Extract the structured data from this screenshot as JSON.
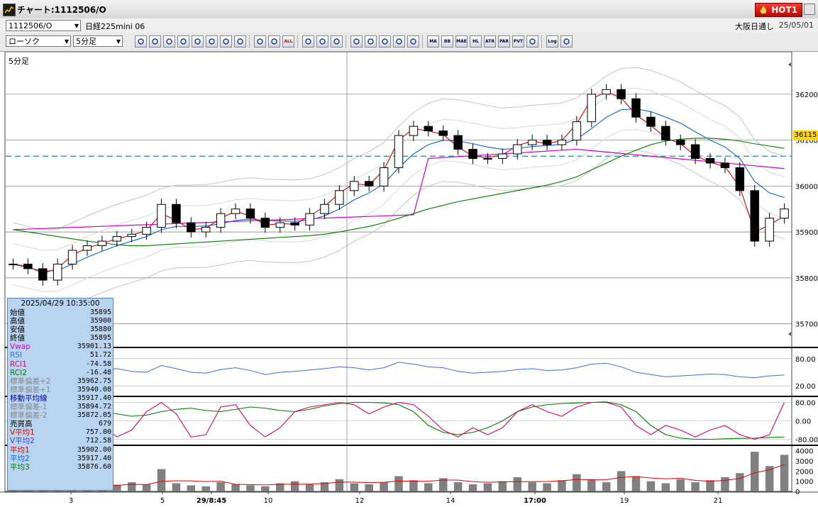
{
  "window": {
    "title": "チャート:1112506/O",
    "hot_label": "HOT1"
  },
  "infobar": {
    "symbol_code": "1112506/O",
    "symbol_name": "日経225mini 06",
    "market": "大阪日通し",
    "date": "25/05/01"
  },
  "toolbar": {
    "chart_type": "ローソク",
    "interval": "5分足",
    "text_buttons": [
      "ALL",
      "MA",
      "BB",
      "MAE",
      "HL",
      "ATR",
      "PAR",
      "PVT",
      "Log"
    ]
  },
  "chart": {
    "period_label": "5分足",
    "current_price_tag": "36115",
    "price_ticks": [
      "36200",
      "36100",
      "36000",
      "35900",
      "35800",
      "35700"
    ],
    "rsi_ticks": [
      "80.00",
      "20.00"
    ],
    "rci_ticks": [
      "80.00",
      "0.00",
      "-80.00"
    ],
    "volume_ticks": [
      "4000",
      "3000",
      "2000",
      "1000",
      "0"
    ],
    "x_labels": [
      "3",
      "5",
      "29/8:45",
      "10",
      "12",
      "14",
      "17:00",
      "19",
      "21"
    ]
  },
  "chart_data": {
    "type": "candlestick",
    "title": "",
    "series": [
      {
        "name": "ローソク",
        "values": [
          35830,
          35820,
          35795,
          35830,
          35860,
          35870,
          35880,
          35890,
          35895,
          35910,
          35960,
          35920,
          35900,
          35910,
          35940,
          35950,
          35930,
          35910,
          35920,
          35915,
          35940,
          35960,
          35990,
          36010,
          36000,
          36040,
          36110,
          36130,
          36120,
          36110,
          36080,
          36060,
          36060,
          36070,
          36090,
          36100,
          36090,
          36100,
          36140,
          36200,
          36210,
          36190,
          36150,
          36130,
          36100,
          36090,
          36060,
          36050,
          36040,
          35990,
          35880,
          35930,
          35950
        ]
      },
      {
        "name": "平均1",
        "values": [
          35830,
          35825,
          35810,
          35820,
          35850,
          35865,
          35875,
          35885,
          35893,
          35903,
          35940,
          35925,
          35905,
          35908,
          35930,
          35945,
          35935,
          35915,
          35918,
          35917,
          35935,
          35955,
          35985,
          36005,
          36002,
          36035,
          36100,
          36125,
          36120,
          36112,
          36085,
          36065,
          36062,
          36068,
          36088,
          36098,
          36092,
          36099,
          36135,
          36190,
          36205,
          36192,
          36155,
          36132,
          36105,
          36092,
          36066,
          36052,
          36042,
          35998,
          35900,
          35915,
          35935
        ]
      },
      {
        "name": "平均2",
        "values": [
          35830,
          35822,
          35815,
          35816,
          35830,
          35845,
          35858,
          35870,
          35880,
          35890,
          35905,
          35912,
          35912,
          35913,
          35918,
          35925,
          35928,
          35925,
          35924,
          35923,
          35926,
          35935,
          35950,
          35970,
          35985,
          36005,
          36040,
          36070,
          36090,
          36100,
          36098,
          36092,
          36085,
          36080,
          36082,
          36086,
          36088,
          36091,
          36102,
          36125,
          36150,
          36166,
          36168,
          36162,
          36150,
          36137,
          36118,
          36100,
          36085,
          36060,
          36010,
          35985,
          35975
        ]
      },
      {
        "name": "平均3",
        "values": [
          35905,
          35900,
          35895,
          35890,
          35885,
          35880,
          35876,
          35872,
          35870,
          35870,
          35872,
          35874,
          35876,
          35878,
          35880,
          35882,
          35884,
          35886,
          35888,
          35890,
          35892,
          35895,
          35900,
          35906,
          35912,
          35920,
          35930,
          35940,
          35950,
          35958,
          35966,
          35972,
          35978,
          35984,
          35990,
          35996,
          36002,
          36010,
          36020,
          36035,
          36050,
          36065,
          36078,
          36090,
          36098,
          36102,
          36104,
          36104,
          36102,
          36098,
          36092,
          36087,
          36082
        ]
      },
      {
        "name": "RSI",
        "values": [
          60,
          58,
          55,
          62,
          60,
          57,
          55,
          58,
          52,
          50,
          65,
          58,
          50,
          48,
          56,
          60,
          54,
          45,
          50,
          52,
          55,
          58,
          62,
          60,
          55,
          60,
          72,
          68,
          62,
          60,
          52,
          48,
          50,
          52,
          56,
          58,
          54,
          55,
          60,
          68,
          70,
          62,
          50,
          45,
          40,
          42,
          44,
          46,
          45,
          40,
          38,
          42,
          44
        ]
      },
      {
        "name": "RCI1",
        "values": [
          -60,
          -70,
          -75,
          40,
          70,
          60,
          -20,
          -70,
          -40,
          40,
          80,
          30,
          -70,
          -60,
          60,
          70,
          -20,
          -70,
          -30,
          40,
          60,
          70,
          80,
          70,
          30,
          60,
          80,
          70,
          20,
          -40,
          -70,
          -30,
          -60,
          -30,
          40,
          70,
          40,
          20,
          60,
          80,
          80,
          60,
          -20,
          -60,
          -20,
          -40,
          -70,
          -40,
          -20,
          -60,
          -80,
          -60,
          80
        ]
      },
      {
        "name": "RCI2",
        "values": [
          60,
          70,
          75,
          70,
          60,
          55,
          45,
          30,
          20,
          25,
          40,
          50,
          55,
          45,
          40,
          50,
          60,
          55,
          45,
          40,
          50,
          65,
          75,
          80,
          80,
          78,
          70,
          40,
          -20,
          -50,
          -60,
          -50,
          -30,
          0,
          40,
          60,
          70,
          75,
          78,
          80,
          82,
          70,
          40,
          -20,
          -60,
          -75,
          -80,
          -80,
          -78,
          -76,
          -75,
          -72,
          -70
        ]
      },
      {
        "name": "売買高",
        "values": [
          600,
          500,
          700,
          450,
          800,
          600,
          500,
          650,
          900,
          700,
          2200,
          800,
          600,
          500,
          900,
          700,
          600,
          500,
          800,
          1000,
          700,
          900,
          1200,
          800,
          700,
          900,
          1500,
          1100,
          800,
          1300,
          900,
          700,
          800,
          1000,
          1400,
          900,
          800,
          1100,
          1700,
          1200,
          900,
          2000,
          1500,
          1000,
          800,
          1200,
          900,
          1100,
          1400,
          1800,
          3900,
          2500,
          3600
        ]
      }
    ],
    "ylim": [
      35650,
      36280
    ]
  },
  "datatable": {
    "timestamp": "2025/04/29  10:35:00",
    "rows": [
      {
        "label": "始値",
        "value": "35895",
        "color": "#000000"
      },
      {
        "label": "高値",
        "value": "35900",
        "color": "#000000"
      },
      {
        "label": "安値",
        "value": "35880",
        "color": "#000000"
      },
      {
        "label": "終値",
        "value": "35895",
        "color": "#000000"
      },
      {
        "label": "Vwap",
        "value": "35901.13",
        "color": "#d000c0"
      },
      {
        "label": "RSI",
        "value": "51.72",
        "color": "#3a6fd8"
      },
      {
        "label": "RCI1",
        "value": "-74.58",
        "color": "#e0006a"
      },
      {
        "label": "RCI2",
        "value": "-16.48",
        "color": "#007a00"
      },
      {
        "label": "標準偏差+2",
        "value": "35962.75",
        "color": "#888888"
      },
      {
        "label": "標準偏差+1",
        "value": "35940.08",
        "color": "#888888"
      },
      {
        "label": "移動平均線",
        "value": "35917.40",
        "color": "#0000aa"
      },
      {
        "label": "標準偏差-1",
        "value": "35894.72",
        "color": "#888888"
      },
      {
        "label": "標準偏差-2",
        "value": "35872.05",
        "color": "#888888"
      },
      {
        "label": "売買高",
        "value": "679",
        "color": "#000000"
      },
      {
        "label": "V平均1",
        "value": "757.00",
        "color": "#e00000"
      },
      {
        "label": "V平均2",
        "value": "712.58",
        "color": "#4040c0"
      },
      {
        "label": "平均1",
        "value": "35902.00",
        "color": "#e00000"
      },
      {
        "label": "平均2",
        "value": "35917.40",
        "color": "#1060e0"
      },
      {
        "label": "平均3",
        "value": "35876.60",
        "color": "#007a00"
      }
    ]
  }
}
